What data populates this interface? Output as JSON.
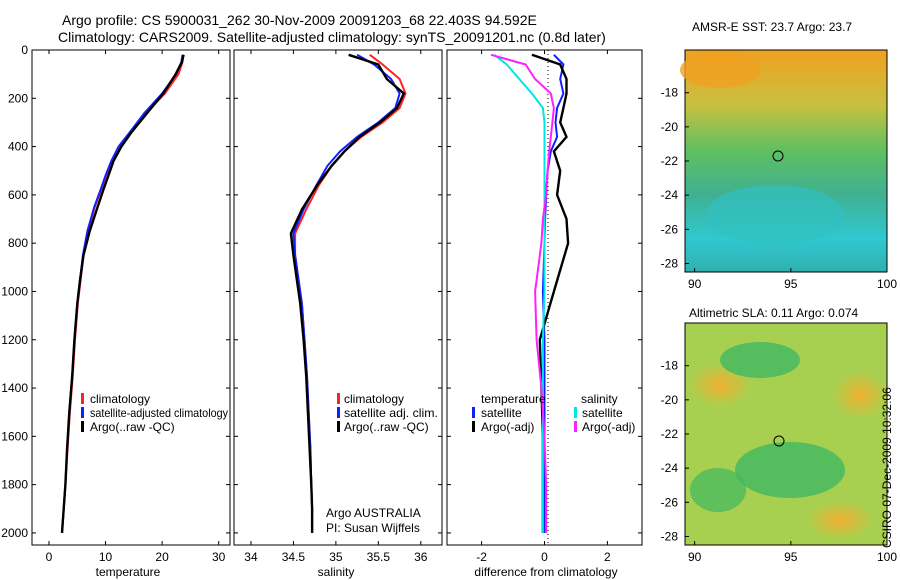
{
  "header": {
    "title_line1": "Argo profile: CS 5900031_262 30-Nov-2009 20091203_68 22.403S 94.592E",
    "title_line2": "Climatology: CARS2009. Satellite-adjusted climatology: synTS_20091201.nc (0.8d later)"
  },
  "stamp": "CSIRO 07-Dec-2009 10:32:06",
  "colors": {
    "climatology": "#ff2020",
    "satellite": "#1020ff",
    "argo": "#000000",
    "sat_sal": "#00e5e5",
    "argo_sal": "#ff20ff"
  },
  "chart_data": [
    {
      "type": "line",
      "xlabel": "temperature",
      "ylim": [
        2050,
        0
      ],
      "xlim": [
        -3,
        32
      ],
      "xticks": [
        0,
        10,
        20,
        30
      ],
      "yticks": [
        0,
        200,
        400,
        600,
        800,
        1000,
        1200,
        1400,
        1600,
        1800,
        2000
      ],
      "series": [
        {
          "name": "climatology",
          "color": "#ff2020",
          "x": [
            23.7,
            23.6,
            22.9,
            20.5,
            17.2,
            14.5,
            12.5,
            11.2,
            10.1,
            9.2,
            8.1,
            6.9,
            6.1,
            5.6,
            5.1,
            4.6,
            4.2,
            3.7,
            3.3,
            2.9,
            2.6,
            2.3
          ],
          "y": [
            20,
            50,
            100,
            180,
            260,
            340,
            400,
            460,
            520,
            580,
            650,
            750,
            850,
            950,
            1050,
            1200,
            1350,
            1500,
            1650,
            1800,
            1900,
            2000
          ]
        },
        {
          "name": "satellite-adjusted climatology",
          "color": "#1020ff",
          "x": [
            23.6,
            23.4,
            22.5,
            20.0,
            16.9,
            14.3,
            12.3,
            11.0,
            10.0,
            9.1,
            8.0,
            6.8,
            6.0,
            5.5,
            5.0,
            4.5,
            4.1,
            3.6,
            3.2,
            2.9,
            2.6,
            2.3
          ],
          "y": [
            20,
            50,
            100,
            180,
            260,
            340,
            400,
            460,
            520,
            580,
            650,
            750,
            850,
            950,
            1050,
            1200,
            1350,
            1500,
            1650,
            1800,
            1900,
            2000
          ]
        },
        {
          "name": "Argo(..raw -QC)",
          "color": "#000000",
          "x": [
            23.8,
            23.5,
            22.4,
            20.2,
            17.4,
            14.6,
            12.8,
            11.4,
            10.5,
            9.6,
            8.6,
            7.2,
            6.1,
            5.5,
            5.0,
            4.5,
            4.1,
            3.6,
            3.2,
            2.9,
            2.6,
            2.3
          ],
          "y": [
            20,
            50,
            100,
            180,
            260,
            340,
            400,
            460,
            520,
            580,
            650,
            750,
            850,
            950,
            1050,
            1200,
            1350,
            1500,
            1650,
            1800,
            1900,
            2000
          ]
        }
      ]
    },
    {
      "type": "line",
      "xlabel": "salinity",
      "ylim": [
        2050,
        0
      ],
      "xlim": [
        33.8,
        36.25
      ],
      "xticks": [
        34,
        34.5,
        35,
        35.5,
        36
      ],
      "yticks": [
        0,
        200,
        400,
        600,
        800,
        1000,
        1200,
        1400,
        1600,
        1800,
        2000
      ],
      "series": [
        {
          "name": "climatology",
          "color": "#ff2020",
          "x": [
            35.4,
            35.55,
            35.75,
            35.82,
            35.75,
            35.55,
            35.3,
            35.1,
            34.95,
            34.8,
            34.65,
            34.52,
            34.52,
            34.56,
            34.6,
            34.63,
            34.66,
            34.68,
            34.7,
            34.71,
            34.72,
            34.72
          ],
          "y": [
            20,
            60,
            120,
            180,
            240,
            300,
            360,
            420,
            480,
            560,
            660,
            760,
            850,
            950,
            1050,
            1200,
            1350,
            1500,
            1650,
            1800,
            1900,
            2000
          ]
        },
        {
          "name": "satellite adj. clim.",
          "color": "#1020ff",
          "x": [
            35.25,
            35.45,
            35.65,
            35.75,
            35.7,
            35.5,
            35.25,
            35.05,
            34.9,
            34.77,
            34.62,
            34.5,
            34.52,
            34.56,
            34.6,
            34.63,
            34.66,
            34.68,
            34.7,
            34.71,
            34.72,
            34.72
          ],
          "y": [
            20,
            60,
            120,
            180,
            240,
            300,
            360,
            420,
            480,
            560,
            660,
            760,
            850,
            950,
            1050,
            1200,
            1350,
            1500,
            1650,
            1800,
            1900,
            2000
          ]
        },
        {
          "name": "Argo(..raw -QC)",
          "color": "#000000",
          "x": [
            35.15,
            35.5,
            35.6,
            35.8,
            35.72,
            35.52,
            35.28,
            35.1,
            34.95,
            34.78,
            34.6,
            34.47,
            34.5,
            34.54,
            34.58,
            34.62,
            34.65,
            34.67,
            34.69,
            34.71,
            34.72,
            34.72
          ],
          "y": [
            20,
            60,
            120,
            180,
            240,
            300,
            360,
            420,
            480,
            560,
            660,
            760,
            850,
            950,
            1050,
            1200,
            1350,
            1500,
            1650,
            1800,
            1900,
            2000
          ]
        }
      ],
      "annotations": [
        "Argo AUSTRALIA",
        "PI: Susan Wijffels"
      ]
    },
    {
      "type": "line",
      "xlabel": "difference from climatology",
      "ylim": [
        2050,
        0
      ],
      "xlim": [
        -3.1,
        3.1
      ],
      "xticks": [
        -2,
        0,
        2
      ],
      "yticks": [
        0,
        200,
        400,
        600,
        800,
        1000,
        1200,
        1400,
        1600,
        1800,
        2000
      ],
      "legend_headers": [
        "temperature",
        "salinity"
      ],
      "series": [
        {
          "name": "satellite",
          "group": "temperature",
          "color": "#1020ff",
          "x": [
            0.3,
            0.6,
            0.5,
            0.6,
            0.4,
            0.35,
            0.4,
            0.2,
            0.1,
            0.05,
            0.02,
            0,
            -0.05,
            0,
            0,
            0,
            0,
            0
          ],
          "y": [
            20,
            60,
            120,
            180,
            240,
            300,
            360,
            420,
            500,
            600,
            700,
            800,
            1000,
            1200,
            1400,
            1600,
            1800,
            2000
          ]
        },
        {
          "name": "Argo(-adj)",
          "group": "temperature",
          "color": "#000000",
          "x": [
            -0.4,
            0.5,
            0.7,
            0.7,
            0.6,
            0.5,
            0.7,
            0.3,
            0.5,
            0.4,
            0.7,
            0.75,
            0.3,
            -0.15,
            -0.1,
            -0.05,
            -0.05,
            -0.05
          ],
          "y": [
            20,
            60,
            120,
            180,
            240,
            300,
            360,
            420,
            500,
            600,
            700,
            800,
            1000,
            1200,
            1400,
            1600,
            1800,
            2000
          ]
        },
        {
          "name": "satellite",
          "group": "salinity",
          "color": "#00e5e5",
          "x": [
            -1.6,
            -1.2,
            -0.8,
            -0.4,
            -0.05,
            0,
            0,
            0,
            0,
            0,
            0,
            0,
            0,
            -0.05,
            -0.05,
            -0.05,
            -0.05,
            -0.05
          ],
          "y": [
            20,
            60,
            120,
            180,
            240,
            300,
            360,
            420,
            500,
            600,
            700,
            800,
            1000,
            1200,
            1400,
            1600,
            1800,
            2000
          ]
        },
        {
          "name": "Argo(-adj)",
          "group": "salinity",
          "color": "#ff20ff",
          "x": [
            -1.7,
            -0.6,
            -0.3,
            0.2,
            0.3,
            0.25,
            0.2,
            0.15,
            0.1,
            0.05,
            -0.05,
            -0.1,
            -0.3,
            -0.25,
            -0.1,
            0,
            0.05,
            0.05
          ],
          "y": [
            20,
            60,
            120,
            180,
            240,
            300,
            360,
            420,
            500,
            600,
            700,
            800,
            1000,
            1200,
            1400,
            1600,
            1800,
            2000
          ]
        }
      ]
    },
    {
      "type": "heatmap",
      "title": "AMSR-E SST: 23.7 Argo: 23.7",
      "xlim": [
        89.5,
        100
      ],
      "ylim": [
        -28.5,
        -15.5
      ],
      "xticks": [
        90,
        95,
        100
      ],
      "yticks": [
        -18,
        -20,
        -22,
        -24,
        -26,
        -28
      ],
      "marker": {
        "lon": 94.592,
        "lat": -22.403
      }
    },
    {
      "type": "heatmap",
      "title": "Altimetric SLA: 0.11 Argo: 0.074",
      "xlim": [
        89.5,
        100
      ],
      "ylim": [
        -28.5,
        -15.5
      ],
      "xticks": [
        90,
        95,
        100
      ],
      "yticks": [
        -18,
        -20,
        -22,
        -24,
        -26,
        -28
      ],
      "marker": {
        "lon": 94.592,
        "lat": -22.403
      }
    }
  ]
}
